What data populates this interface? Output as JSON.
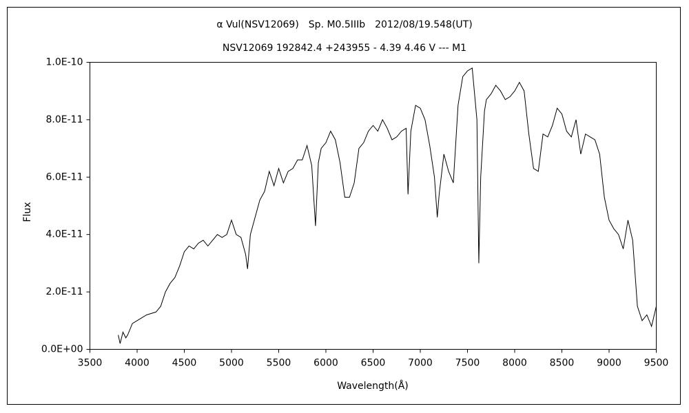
{
  "chart_data": {
    "type": "line",
    "title": "α Vul(NSV12069)　Sp. M0.5IIIb　2012/08/19.548(UT)",
    "subtitle": "NSV12069 192842.4 +243955 - 4.39 4.46 V --- M1",
    "xlabel": "Wavelength(Å)",
    "ylabel": "Flux",
    "color": "#000000",
    "grid": false,
    "xlim": [
      3500,
      9500
    ],
    "xticks": [
      3500,
      4000,
      4500,
      5000,
      5500,
      6000,
      6500,
      7000,
      7500,
      8000,
      8500,
      9000,
      9500
    ],
    "ylim": [
      0,
      1e-10
    ],
    "yticks": [
      {
        "value": 0,
        "label": "0.0E+00"
      },
      {
        "value": 2e-11,
        "label": "2.0E-11"
      },
      {
        "value": 4e-11,
        "label": "4.0E-11"
      },
      {
        "value": 6e-11,
        "label": "6.0E-11"
      },
      {
        "value": 8e-11,
        "label": "8.0E-11"
      },
      {
        "value": 1e-10,
        "label": "1.0E-10"
      }
    ],
    "x": [
      3800,
      3820,
      3850,
      3880,
      3900,
      3950,
      4000,
      4100,
      4200,
      4250,
      4300,
      4350,
      4400,
      4450,
      4500,
      4550,
      4600,
      4650,
      4700,
      4750,
      4800,
      4850,
      4900,
      4950,
      5000,
      5050,
      5100,
      5150,
      5170,
      5200,
      5250,
      5300,
      5350,
      5400,
      5450,
      5500,
      5550,
      5600,
      5650,
      5700,
      5750,
      5800,
      5850,
      5890,
      5920,
      5950,
      6000,
      6050,
      6100,
      6150,
      6200,
      6250,
      6300,
      6350,
      6400,
      6450,
      6500,
      6550,
      6600,
      6650,
      6700,
      6750,
      6800,
      6850,
      6870,
      6900,
      6950,
      7000,
      7050,
      7100,
      7150,
      7180,
      7200,
      7250,
      7300,
      7350,
      7400,
      7450,
      7500,
      7550,
      7600,
      7620,
      7640,
      7680,
      7700,
      7750,
      7800,
      7850,
      7900,
      7950,
      8000,
      8050,
      8100,
      8150,
      8200,
      8250,
      8300,
      8350,
      8400,
      8450,
      8500,
      8550,
      8600,
      8650,
      8700,
      8750,
      8800,
      8850,
      8900,
      8950,
      9000,
      9050,
      9100,
      9150,
      9200,
      9250,
      9300,
      9350,
      9400,
      9450,
      9500
    ],
    "values": [
      5e-12,
      2e-12,
      6e-12,
      4e-12,
      5e-12,
      9e-12,
      1e-11,
      1.2e-11,
      1.3e-11,
      1.5e-11,
      2e-11,
      2.3e-11,
      2.5e-11,
      2.9e-11,
      3.4e-11,
      3.6e-11,
      3.5e-11,
      3.7e-11,
      3.8e-11,
      3.6e-11,
      3.8e-11,
      4e-11,
      3.9e-11,
      4e-11,
      4.5e-11,
      4e-11,
      3.9e-11,
      3.3e-11,
      2.8e-11,
      4e-11,
      4.6e-11,
      5.2e-11,
      5.5e-11,
      6.2e-11,
      5.7e-11,
      6.3e-11,
      5.8e-11,
      6.2e-11,
      6.3e-11,
      6.6e-11,
      6.6e-11,
      7.1e-11,
      6.4e-11,
      4.3e-11,
      6.5e-11,
      7e-11,
      7.2e-11,
      7.6e-11,
      7.3e-11,
      6.5e-11,
      5.3e-11,
      5.3e-11,
      5.8e-11,
      7e-11,
      7.2e-11,
      7.6e-11,
      7.8e-11,
      7.6e-11,
      8e-11,
      7.7e-11,
      7.3e-11,
      7.4e-11,
      7.6e-11,
      7.7e-11,
      5.4e-11,
      7.6e-11,
      8.5e-11,
      8.4e-11,
      8e-11,
      7.1e-11,
      6e-11,
      4.6e-11,
      5.4e-11,
      6.8e-11,
      6.2e-11,
      5.8e-11,
      8.5e-11,
      9.5e-11,
      9.7e-11,
      9.8e-11,
      8e-11,
      3e-11,
      6e-11,
      8.3e-11,
      8.7e-11,
      8.9e-11,
      9.2e-11,
      9e-11,
      8.7e-11,
      8.8e-11,
      9e-11,
      9.3e-11,
      9e-11,
      7.5e-11,
      6.3e-11,
      6.2e-11,
      7.5e-11,
      7.4e-11,
      7.8e-11,
      8.4e-11,
      8.2e-11,
      7.6e-11,
      7.4e-11,
      8e-11,
      6.8e-11,
      7.5e-11,
      7.4e-11,
      7.3e-11,
      6.8e-11,
      5.3e-11,
      4.5e-11,
      4.2e-11,
      4e-11,
      3.5e-11,
      4.5e-11,
      3.8e-11,
      1.5e-11,
      1e-11,
      1.2e-11,
      8e-12,
      1.5e-11
    ]
  }
}
